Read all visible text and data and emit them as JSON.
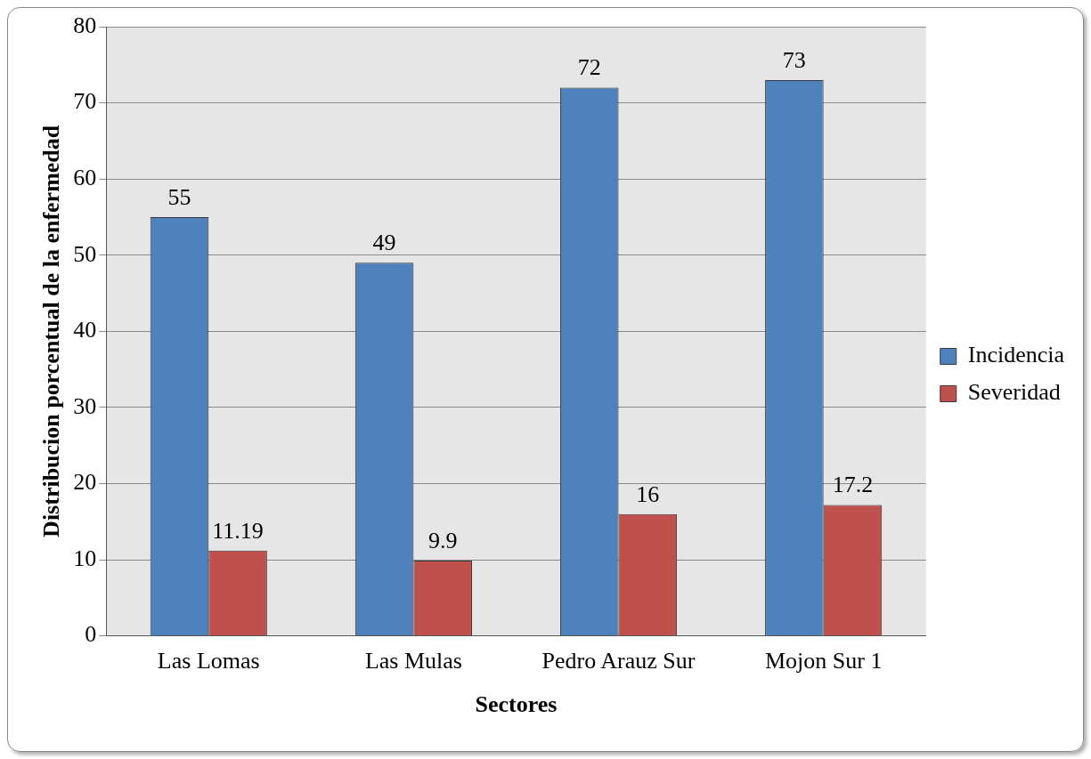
{
  "chart_data": {
    "type": "bar",
    "xlabel": "Sectores",
    "ylabel": "Distribucion porcentual de la enfermedad",
    "categories": [
      "Las Lomas",
      "Las Mulas",
      "Pedro Arauz Sur",
      "Mojon Sur 1"
    ],
    "series": [
      {
        "name": "Incidencia",
        "color": "#4f81bd",
        "values": [
          55,
          49,
          72,
          73
        ]
      },
      {
        "name": "Severidad",
        "color": "#c0504d",
        "values": [
          11.19,
          9.9,
          16,
          17.2
        ]
      }
    ],
    "ylim": [
      0,
      80
    ],
    "yticks": [
      0,
      10,
      20,
      30,
      40,
      50,
      60,
      70,
      80
    ],
    "grid": "y",
    "legend": "right",
    "data_labels": true
  }
}
